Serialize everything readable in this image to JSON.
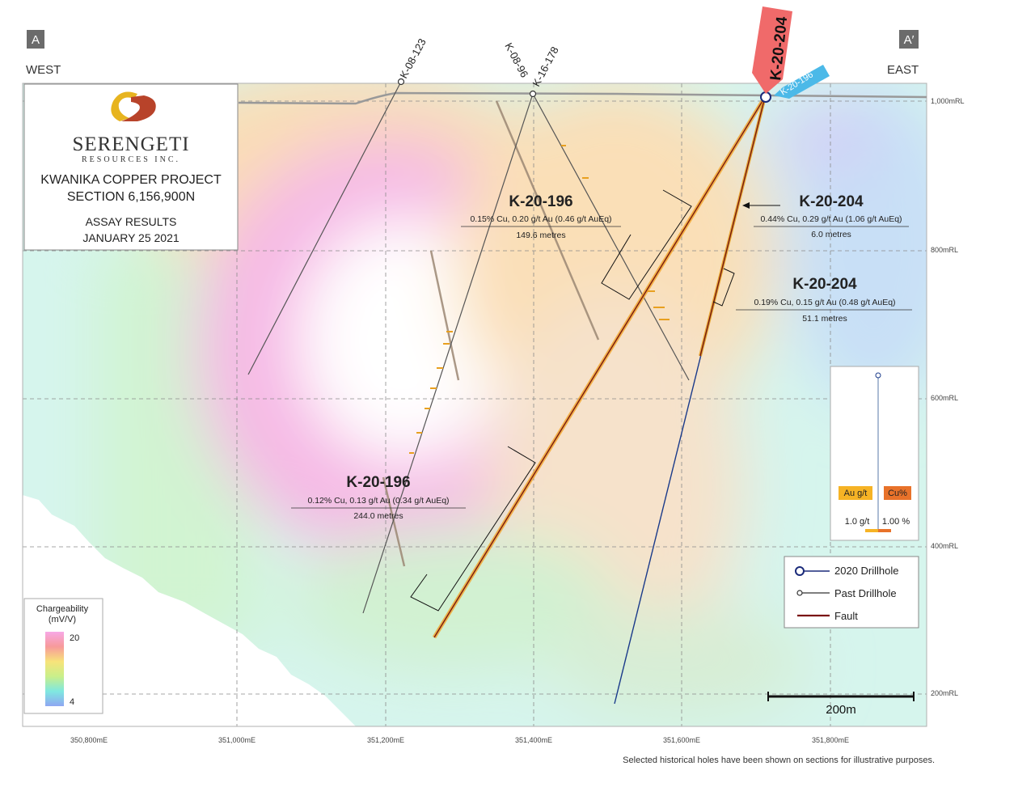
{
  "section": {
    "left_corner": "A",
    "right_corner": "A′",
    "west": "WEST",
    "east": "EAST"
  },
  "logo": {
    "name": "SERENGETI",
    "sub": "RESOURCES INC."
  },
  "title_box": {
    "project": "KWANIKA COPPER PROJECT",
    "section": "SECTION 6,156,900N",
    "assay": "ASSAY RESULTS",
    "date": "JANUARY 25 2021"
  },
  "drillholes": {
    "k08123": "K-08-123",
    "k0896": "K-08-96",
    "k16178": "K-16-178",
    "k20204": "K-20-204",
    "k20196": "K-20-196"
  },
  "intercepts": [
    {
      "hole": "K-20-196",
      "grade": "0.15% Cu, 0.20 g/t Au (0.46 g/t AuEq)",
      "length": "149.6 metres"
    },
    {
      "hole": "K-20-204",
      "grade": "0.44% Cu, 0.29 g/t Au (1.06 g/t AuEq)",
      "length": "6.0 metres"
    },
    {
      "hole": "K-20-204",
      "grade": "0.19% Cu, 0.15 g/t Au (0.48 g/t AuEq)",
      "length": "51.1 metres"
    },
    {
      "hole": "K-20-196",
      "grade": "0.12% Cu, 0.13 g/t Au (0.34 g/t AuEq)",
      "length": "244.0 metres"
    }
  ],
  "elevation_labels": [
    "1,000mRL",
    "800mRL",
    "600mRL",
    "400mRL",
    "200mRL"
  ],
  "easting_labels": [
    "350,800mE",
    "351,000mE",
    "351,200mE",
    "351,400mE",
    "351,600mE",
    "351,800mE"
  ],
  "grade_legend": {
    "au_label": "Au g/t",
    "cu_label": "Cu%",
    "au_scale": "1.0 g/t",
    "cu_scale": "1.00 %",
    "au_color": "#f6b325",
    "cu_color": "#e8722a"
  },
  "symbol_legend": {
    "drill2020": "2020 Drillhole",
    "past": "Past Drillhole",
    "fault": "Fault"
  },
  "chargeability": {
    "title": "Chargeability",
    "unit": "(mV/V)",
    "max": "20",
    "min": "4"
  },
  "scale_bar": "200m",
  "footnote": "Selected historical holes have been shown on sections for illustrative purposes.",
  "colors": {
    "hole_2020_callout": "#f06a6a",
    "hole_2020_b_callout": "#4bb9e8",
    "fault": "#7a1010",
    "drill_past": "#555555"
  }
}
